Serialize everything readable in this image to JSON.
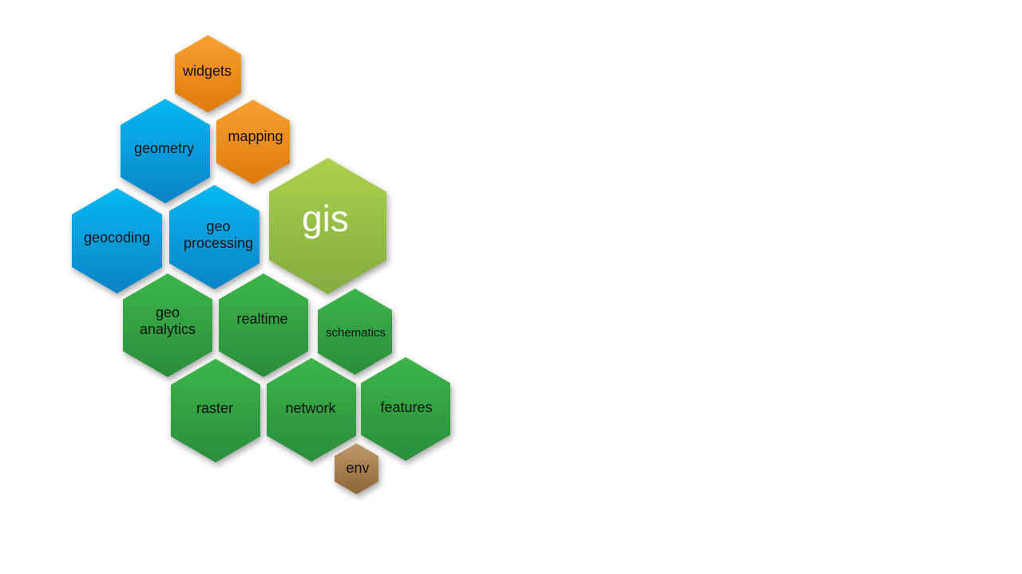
{
  "hexagons": {
    "widgets": "widgets",
    "geometry": "geometry",
    "mapping": "mapping",
    "geocoding": "geocoding",
    "geoprocessing": "geo\nprocessing",
    "gis": "gis",
    "geoanalytics": "geo\nanalytics",
    "realtime": "realtime",
    "schematics": "schematics",
    "raster": "raster",
    "network": "network",
    "features": "features",
    "env": "env"
  },
  "colors": {
    "orange": "#ef8c1e",
    "blue": "#0aa0e0",
    "lime": "#9bc046",
    "green": "#35a443",
    "brown": "#a88050",
    "gis_text": "#ffffff"
  }
}
